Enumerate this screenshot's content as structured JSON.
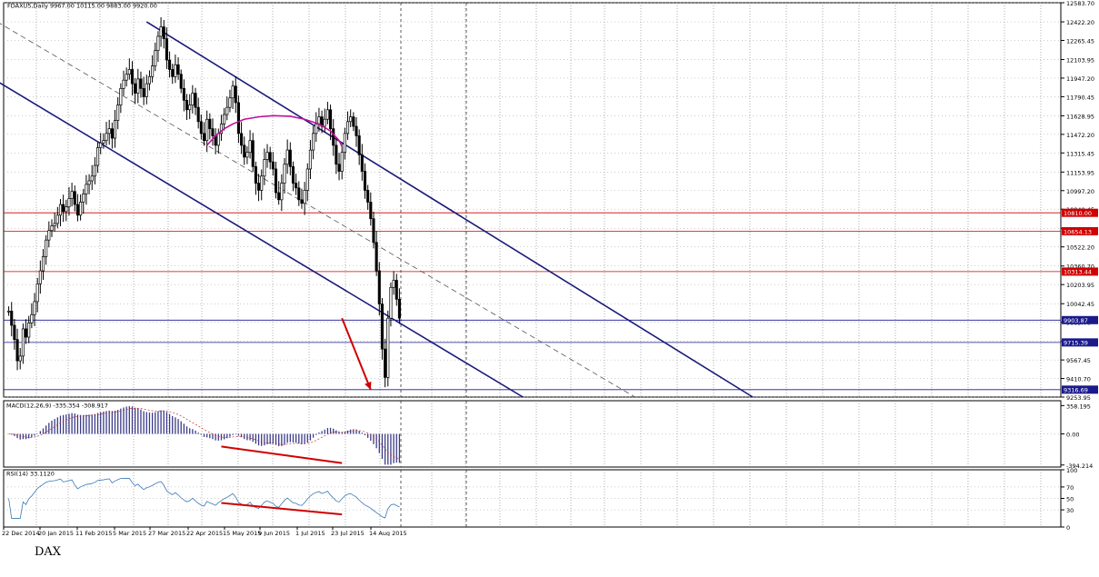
{
  "caption": "DAX",
  "chart_data": {
    "type": "candlestick",
    "symbol_label": "FDAXU5,Daily",
    "ohlc_label": "9967.00 10115.00 9883.00 9920.00",
    "x_tick_labels": [
      "22 Dec 2014",
      "20 Jan 2015",
      "11 Feb 2015",
      "5 Mar 2015",
      "27 Mar 2015",
      "22 Apr 2015",
      "15 May 2015",
      "9 Jun 2015",
      "1 Jul 2015",
      "23 Jul 2015",
      "14 Aug 2015"
    ],
    "price_axis": {
      "ylim": [
        9253.95,
        12583.7
      ],
      "tick_labels": [
        "12583.70",
        "12422.20",
        "12265.45",
        "12103.95",
        "11947.20",
        "11790.45",
        "11628.95",
        "11472.20",
        "11315.45",
        "11153.95",
        "10997.20",
        "10840.45",
        "10678.95",
        "10522.20",
        "10360.70",
        "10203.95",
        "10042.45",
        "9885.70",
        "9724.20",
        "9567.45",
        "9410.70",
        "9253.95"
      ],
      "tick_values": [
        12583.7,
        12422.2,
        12265.45,
        12103.95,
        11947.2,
        11790.45,
        11628.95,
        11472.2,
        11315.45,
        11153.95,
        10997.2,
        10840.45,
        10678.95,
        10522.2,
        10360.7,
        10203.95,
        10042.45,
        9885.7,
        9724.2,
        9567.45,
        9410.7,
        9253.95
      ]
    },
    "levels": [
      {
        "value": 10810.0,
        "label": "10810.00",
        "color": "#d00000",
        "kind": "resistance"
      },
      {
        "value": 10654.13,
        "label": "10654.13",
        "color": "#d00000",
        "kind": "resistance"
      },
      {
        "value": 10313.44,
        "label": "10313.44",
        "color": "#d00000",
        "kind": "resistance"
      },
      {
        "value": 9903.87,
        "label": "9903.87",
        "color": "#1a1a8c",
        "kind": "support"
      },
      {
        "value": 9715.39,
        "label": "9715.39",
        "color": "#1a1a8c",
        "kind": "support"
      },
      {
        "value": 9316.69,
        "label": "9316.69",
        "color": "#1a1a8c",
        "kind": "support"
      }
    ],
    "closes": [
      9980,
      9860,
      9740,
      9560,
      9600,
      9830,
      9760,
      9880,
      9950,
      10060,
      10210,
      10320,
      10440,
      10580,
      10660,
      10700,
      10720,
      10790,
      10880,
      10820,
      10860,
      10930,
      10990,
      10880,
      10790,
      10900,
      10970,
      11050,
      11080,
      11120,
      11210,
      11360,
      11400,
      11420,
      11480,
      11520,
      11440,
      11590,
      11720,
      11860,
      11930,
      11980,
      12020,
      11900,
      11820,
      11940,
      11860,
      11790,
      11900,
      11960,
      12050,
      12180,
      12300,
      12380,
      12280,
      12100,
      12020,
      11960,
      12060,
      11980,
      11860,
      11760,
      11680,
      11720,
      11820,
      11700,
      11580,
      11480,
      11420,
      11600,
      11520,
      11460,
      11380,
      11480,
      11560,
      11640,
      11700,
      11780,
      11880,
      11740,
      11480,
      11380,
      11280,
      11320,
      11420,
      11200,
      11060,
      11000,
      11120,
      11260,
      11320,
      11240,
      11180,
      10980,
      10920,
      11060,
      11220,
      11340,
      11200,
      11060,
      11020,
      10920,
      10890,
      11000,
      11180,
      11340,
      11480,
      11560,
      11620,
      11540,
      11600,
      11680,
      11520,
      11380,
      11220,
      11160,
      11320,
      11480,
      11580,
      11620,
      11540,
      11460,
      11300,
      11160,
      11000,
      10900,
      10760,
      10560,
      10320,
      10040,
      9660,
      9420,
      9920,
      10180,
      10240,
      10080,
      9920
    ],
    "ma_curve": [
      [
        69,
        11380
      ],
      [
        72,
        11460
      ],
      [
        75,
        11520
      ],
      [
        78,
        11560
      ],
      [
        82,
        11600
      ],
      [
        87,
        11620
      ],
      [
        92,
        11630
      ],
      [
        98,
        11625
      ],
      [
        103,
        11600
      ],
      [
        108,
        11560
      ],
      [
        112,
        11500
      ],
      [
        115,
        11420
      ],
      [
        116,
        11370
      ]
    ],
    "channel": {
      "upper": [
        [
          48,
          12422
        ],
        [
          259,
          9253.95
        ]
      ],
      "lower": [
        [
          -4,
          11920
        ],
        [
          179,
          9253.95
        ]
      ],
      "middle": [
        [
          -4,
          12422
        ],
        [
          218,
          9253.95
        ]
      ]
    },
    "arrow": {
      "from": [
        116,
        9920
      ],
      "to": [
        126,
        9316.69
      ],
      "color": "#d00000"
    },
    "macd": {
      "label": "MACD(12,26,9) -335.354 -308.917",
      "ylim": [
        -420,
        420
      ],
      "tick_labels": [
        "358.195",
        "0.00",
        "-394.214"
      ],
      "tick_values": [
        358.195,
        0.0,
        -394.214
      ],
      "divergence_line": {
        "from": [
          74,
          -160
        ],
        "to": [
          116,
          -370
        ],
        "color": "#d00000"
      }
    },
    "rsi": {
      "label": "RSI(14) 33.1120",
      "ylim": [
        0,
        100
      ],
      "tick_labels": [
        "100",
        "70",
        "50",
        "30",
        "0"
      ],
      "tick_values": [
        100,
        70,
        50,
        30,
        0
      ],
      "divergence_line": {
        "from": [
          74,
          42
        ],
        "to": [
          116,
          22
        ],
        "color": "#d00000"
      }
    }
  }
}
